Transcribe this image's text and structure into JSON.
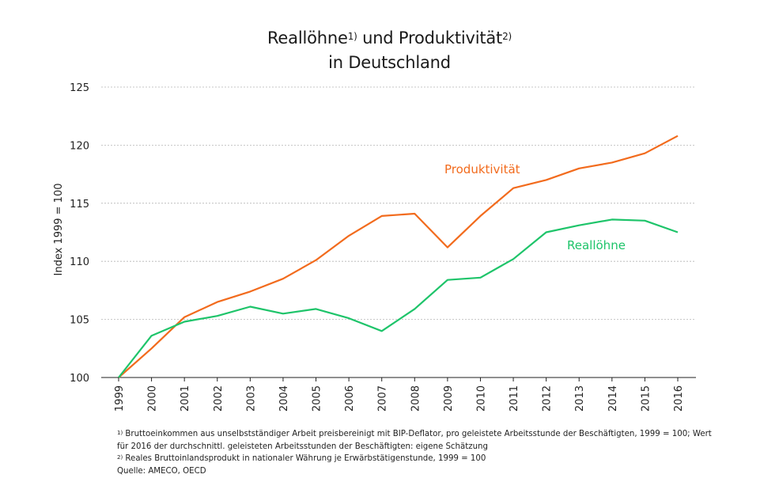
{
  "title": {
    "part1": "Reallöhne",
    "sup1": "1)",
    "part2": " und Produktivität",
    "sup2": "2)",
    "line2": "in Deutschland"
  },
  "chart_data": {
    "type": "line",
    "title": "Reallöhne und Produktivität in Deutschland",
    "xlabel": "",
    "ylabel": "Index 1999 = 100",
    "ylim": [
      100,
      125
    ],
    "yticks": [
      "100",
      "105",
      "110",
      "115",
      "120",
      "125"
    ],
    "grid": true,
    "categories": [
      "1999",
      "2000",
      "2001",
      "2002",
      "2003",
      "2004",
      "2005",
      "2006",
      "2007",
      "2008",
      "2009",
      "2010",
      "2011",
      "2012",
      "2013",
      "2014",
      "2015",
      "2016"
    ],
    "series": [
      {
        "name": "Produktivität",
        "color": "#f26b1d",
        "values": [
          100,
          102.5,
          105.2,
          106.5,
          107.4,
          108.5,
          110.1,
          112.2,
          113.9,
          114.1,
          111.2,
          113.9,
          116.3,
          117.0,
          118.0,
          118.5,
          119.3,
          120.8
        ]
      },
      {
        "name": "Reallöhne",
        "color": "#1ec46a",
        "values": [
          100,
          103.6,
          104.8,
          105.3,
          106.1,
          105.5,
          105.9,
          105.1,
          104.0,
          105.9,
          108.4,
          108.6,
          110.2,
          112.5,
          113.1,
          113.6,
          113.5,
          112.5
        ]
      }
    ]
  },
  "notes": {
    "n1_sup": "1)",
    "n1_text": " Bruttoeinkommen aus unselbstständiger Arbeit preisbereinigt mit BIP-Deflator, pro geleistete Arbeitsstunde der Beschäftigten, 1999 = 100; Wert",
    "n1_cont": "für 2016 der durchschnittl. geleisteten Arbeitsstunden der Beschäftigten: eigene Schätzung",
    "n2_sup": "2)",
    "n2_text": " Reales Bruttoinlandsprodukt in nationaler Währung je Erwärbstätigenstunde, 1999 = 100",
    "source": "Quelle: AMECO, OECD"
  }
}
